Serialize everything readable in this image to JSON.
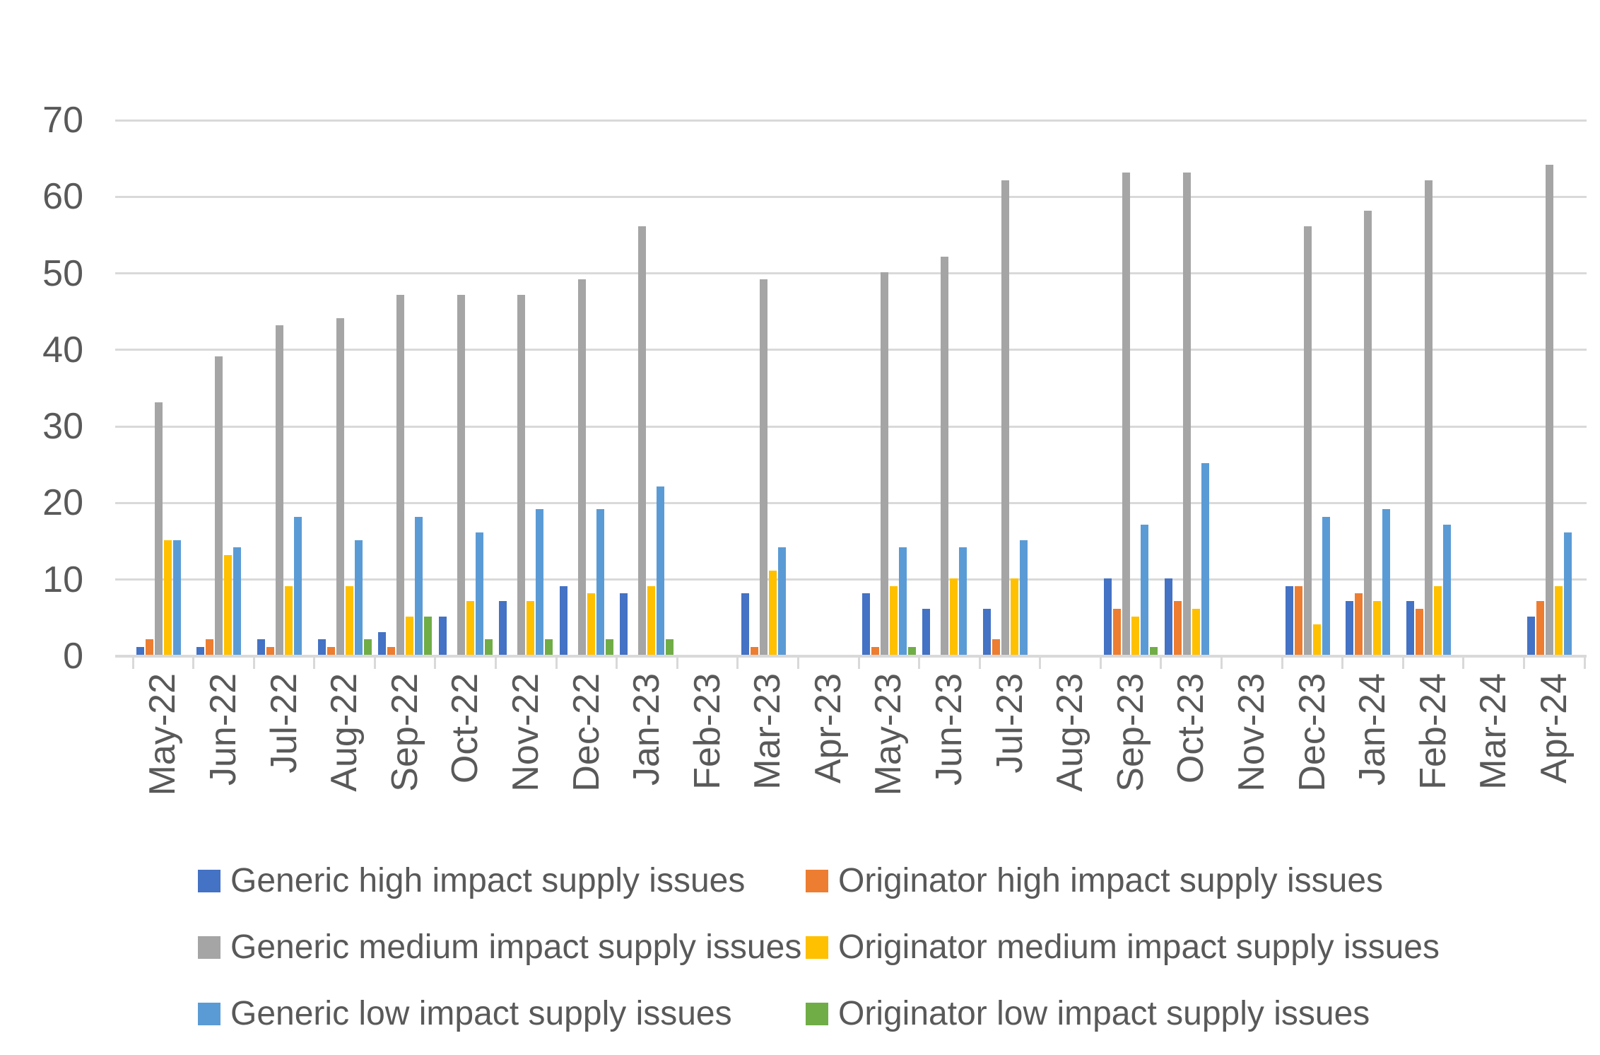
{
  "chart_data": {
    "type": "bar",
    "title": "",
    "xlabel": "",
    "ylabel": "",
    "ylim": [
      0,
      70
    ],
    "ytick_step": 10,
    "yticks": [
      0,
      10,
      20,
      30,
      40,
      50,
      60,
      70
    ],
    "grid": true,
    "legend_position": "bottom",
    "axis_text_color": "#595959",
    "gridline_color": "#d9d9d9",
    "categories": [
      "May-22",
      "Jun-22",
      "Jul-22",
      "Aug-22",
      "Sep-22",
      "Oct-22",
      "Nov-22",
      "Dec-22",
      "Jan-23",
      "Feb-23",
      "Mar-23",
      "Apr-23",
      "May-23",
      "Jun-23",
      "Jul-23",
      "Aug-23",
      "Sep-23",
      "Oct-23",
      "Nov-23",
      "Dec-23",
      "Jan-24",
      "Feb-24",
      "Mar-24",
      "Apr-24"
    ],
    "series": [
      {
        "name": "Generic high impact supply issues",
        "color": "#4472c4",
        "values": [
          1,
          1,
          2,
          2,
          3,
          5,
          7,
          9,
          8,
          0,
          8,
          0,
          8,
          6,
          6,
          0,
          10,
          10,
          0,
          9,
          7,
          7,
          0,
          5
        ]
      },
      {
        "name": "Originator high impact supply issues",
        "color": "#ed7d31",
        "values": [
          2,
          2,
          1,
          1,
          1,
          0,
          0,
          0,
          0,
          0,
          1,
          0,
          1,
          0,
          2,
          0,
          6,
          7,
          0,
          9,
          8,
          6,
          0,
          7
        ]
      },
      {
        "name": "Generic medium impact supply issues",
        "color": "#a5a5a5",
        "values": [
          33,
          39,
          43,
          44,
          47,
          47,
          47,
          49,
          56,
          0,
          49,
          0,
          50,
          52,
          62,
          0,
          63,
          63,
          0,
          56,
          58,
          62,
          0,
          64
        ]
      },
      {
        "name": "Originator medium impact supply issues",
        "color": "#ffc000",
        "values": [
          15,
          13,
          9,
          9,
          5,
          7,
          7,
          8,
          9,
          0,
          11,
          0,
          9,
          10,
          10,
          0,
          5,
          6,
          0,
          4,
          7,
          9,
          0,
          9
        ]
      },
      {
        "name": "Generic low impact supply issues",
        "color": "#5b9bd5",
        "values": [
          15,
          14,
          18,
          15,
          18,
          16,
          19,
          19,
          22,
          0,
          14,
          0,
          14,
          14,
          15,
          0,
          17,
          25,
          0,
          18,
          19,
          17,
          0,
          16
        ]
      },
      {
        "name": "Originator low impact supply issues",
        "color": "#70ad47",
        "values": [
          0,
          0,
          0,
          2,
          5,
          2,
          2,
          2,
          2,
          0,
          0,
          0,
          1,
          0,
          0,
          0,
          1,
          0,
          0,
          0,
          0,
          0,
          0,
          0
        ]
      }
    ]
  },
  "layout_note": ""
}
